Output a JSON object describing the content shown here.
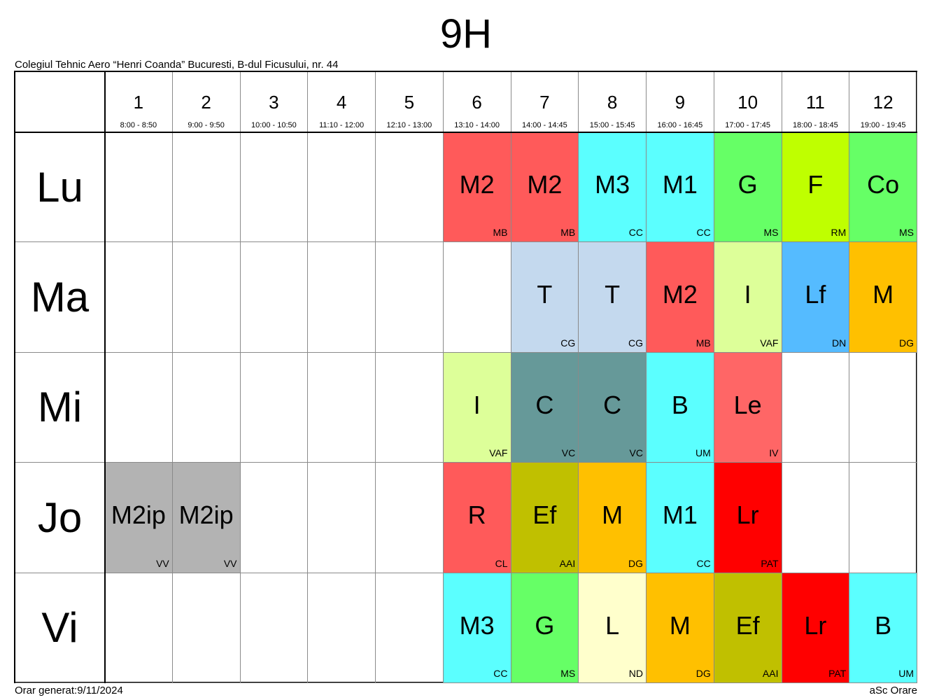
{
  "title": "9H",
  "school": "Colegiul Tehnic Aero “Henri Coanda” Bucuresti, B-dul Ficusului, nr. 44",
  "footer_left": "Orar generat:9/11/2024",
  "footer_right": "aSc Orare",
  "periods": [
    {
      "num": "1",
      "time": "8:00 - 8:50"
    },
    {
      "num": "2",
      "time": "9:00 - 9:50"
    },
    {
      "num": "3",
      "time": "10:00 - 10:50"
    },
    {
      "num": "4",
      "time": "11:10 - 12:00"
    },
    {
      "num": "5",
      "time": "12:10 - 13:00"
    },
    {
      "num": "6",
      "time": "13:10 - 14:00"
    },
    {
      "num": "7",
      "time": "14:00 - 14:45"
    },
    {
      "num": "8",
      "time": "15:00 - 15:45"
    },
    {
      "num": "9",
      "time": "16:00 - 16:45"
    },
    {
      "num": "10",
      "time": "17:00 - 17:45"
    },
    {
      "num": "11",
      "time": "18:00 - 18:45"
    },
    {
      "num": "12",
      "time": "19:00 - 19:45"
    }
  ],
  "days": [
    {
      "label": "Lu",
      "cells": [
        null,
        null,
        null,
        null,
        null,
        {
          "s": "M2",
          "t": "MB",
          "c": "#FF5A5A"
        },
        {
          "s": "M2",
          "t": "MB",
          "c": "#FF5A5A"
        },
        {
          "s": "M3",
          "t": "CC",
          "c": "#5BFFFF"
        },
        {
          "s": "M1",
          "t": "CC",
          "c": "#5BFFFF"
        },
        {
          "s": "G",
          "t": "MS",
          "c": "#66FF66"
        },
        {
          "s": "F",
          "t": "RM",
          "c": "#BFFF00"
        },
        {
          "s": "Co",
          "t": "MS",
          "c": "#66FF66"
        }
      ]
    },
    {
      "label": "Ma",
      "cells": [
        null,
        null,
        null,
        null,
        null,
        null,
        {
          "s": "T",
          "t": "CG",
          "c": "#C4D9EE"
        },
        {
          "s": "T",
          "t": "CG",
          "c": "#C4D9EE"
        },
        {
          "s": "M2",
          "t": "MB",
          "c": "#FF5A5A"
        },
        {
          "s": "I",
          "t": "VAF",
          "c": "#DDFF99"
        },
        {
          "s": "Lf",
          "t": "DN",
          "c": "#55BBFF"
        },
        {
          "s": "M",
          "t": "DG",
          "c": "#FFC000"
        }
      ]
    },
    {
      "label": "Mi",
      "cells": [
        null,
        null,
        null,
        null,
        null,
        {
          "s": "I",
          "t": "VAF",
          "c": "#DDFF99"
        },
        {
          "s": "C",
          "t": "VC",
          "c": "#669999"
        },
        {
          "s": "C",
          "t": "VC",
          "c": "#669999"
        },
        {
          "s": "B",
          "t": "UM",
          "c": "#5BFFFF"
        },
        {
          "s": "Le",
          "t": "IV",
          "c": "#FF6666"
        },
        null,
        null
      ]
    },
    {
      "label": "Jo",
      "cells": [
        {
          "s": "M2ip",
          "t": "VV",
          "c": "#B3B3B3"
        },
        {
          "s": "M2ip",
          "t": "VV",
          "c": "#B3B3B3"
        },
        null,
        null,
        null,
        {
          "s": "R",
          "t": "CL",
          "c": "#FF5A5A"
        },
        {
          "s": "Ef",
          "t": "AAI",
          "c": "#C0C000"
        },
        {
          "s": "M",
          "t": "DG",
          "c": "#FFC000"
        },
        {
          "s": "M1",
          "t": "CC",
          "c": "#5BFFFF"
        },
        {
          "s": "Lr",
          "t": "PAT",
          "c": "#FF0000"
        },
        null,
        null
      ]
    },
    {
      "label": "Vi",
      "cells": [
        null,
        null,
        null,
        null,
        null,
        {
          "s": "M3",
          "t": "CC",
          "c": "#5BFFFF"
        },
        {
          "s": "G",
          "t": "MS",
          "c": "#66FF66"
        },
        {
          "s": "L",
          "t": "ND",
          "c": "#FFFFCC"
        },
        {
          "s": "M",
          "t": "DG",
          "c": "#FFC000"
        },
        {
          "s": "Ef",
          "t": "AAI",
          "c": "#C0C000"
        },
        {
          "s": "Lr",
          "t": "PAT",
          "c": "#FF0000"
        },
        {
          "s": "B",
          "t": "UM",
          "c": "#5BFFFF"
        }
      ]
    }
  ]
}
